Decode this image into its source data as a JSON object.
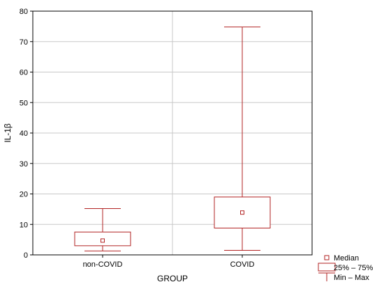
{
  "chart_data": {
    "type": "box",
    "xlabel": "GROUP",
    "ylabel": "IL-1β",
    "ylim": [
      0,
      80
    ],
    "yticks": [
      0,
      10,
      20,
      30,
      40,
      50,
      60,
      70,
      80
    ],
    "grid": true,
    "categories": [
      "non-COVID",
      "COVID"
    ],
    "boxes": [
      {
        "category": "non-COVID",
        "min": 1.3,
        "q1": 3.0,
        "median": 4.7,
        "q3": 7.5,
        "max": 15.2
      },
      {
        "category": "COVID",
        "min": 1.5,
        "q1": 8.8,
        "median": 13.9,
        "q3": 19.0,
        "max": 74.8
      }
    ],
    "legend": {
      "placement": "bottom-right",
      "items": [
        {
          "label": "Median",
          "symbol": "small-square"
        },
        {
          "label": "25% – 75%",
          "symbol": "box"
        },
        {
          "label": "Min – Max",
          "symbol": "whisker"
        }
      ]
    },
    "colors": {
      "box": "#b22222",
      "grid": "#c8c8c8",
      "frame": "#000000"
    }
  }
}
